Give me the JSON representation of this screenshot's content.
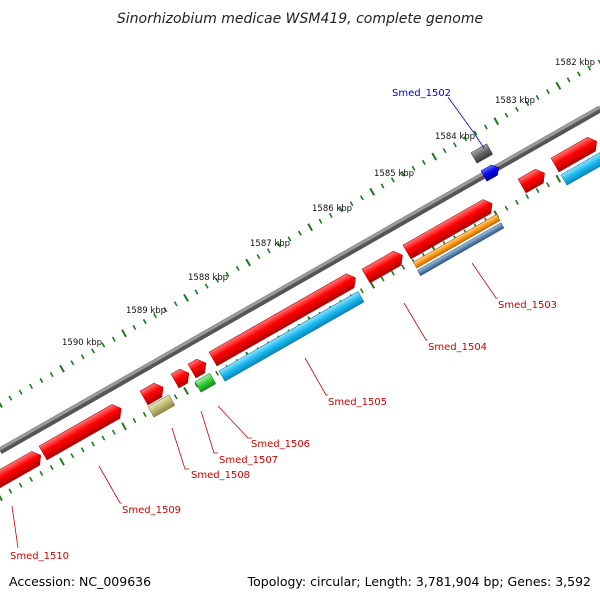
{
  "title": "Sinorhizobium medicae WSM419, complete genome",
  "accession": "Accession: NC_009636",
  "summary": "Topology: circular; Length: 3,781,904 bp; Genes: 3,592",
  "ticks": [
    "1582 kbp",
    "1583 kbp",
    "1584 kbp",
    "1585 kbp",
    "1586 kbp",
    "1587 kbp",
    "1588 kbp",
    "1589 kbp",
    "1590 kbp"
  ],
  "genes": [
    {
      "label": "Smed_1502",
      "color": "#0000cc"
    },
    {
      "label": "Smed_1503",
      "color": "#cc0000"
    },
    {
      "label": "Smed_1504",
      "color": "#cc0000"
    },
    {
      "label": "Smed_1505",
      "color": "#cc0000"
    },
    {
      "label": "Smed_1506",
      "color": "#cc0000"
    },
    {
      "label": "Smed_1507",
      "color": "#cc0000"
    },
    {
      "label": "Smed_1508",
      "color": "#cc0000"
    },
    {
      "label": "Smed_1509",
      "color": "#cc0000"
    },
    {
      "label": "Smed_1510",
      "color": "#cc0000"
    }
  ],
  "colors": {
    "backbone": "#7a7a7a",
    "cds": "#ff0000",
    "gene_blue": "#1ab8f0",
    "orange": "#ff9a1a",
    "steel": "#5b86b8",
    "olive": "#bfbb73",
    "green": "#33cc33",
    "gray": "#666666",
    "darkblue": "#0000ee",
    "tick": "#1a7a1a"
  }
}
